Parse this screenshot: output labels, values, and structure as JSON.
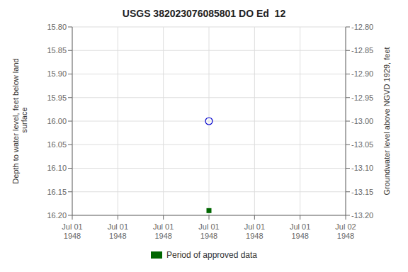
{
  "chart_data": {
    "type": "scatter",
    "title": "USGS 382023076085801 DO Ed  12",
    "y_label": "Depth to water level, feet below land\n surface",
    "y2_label": "Groundwater level above NGVD 1929, feet",
    "categories": [
      "Jul 01\n1948",
      "Jul 01\n1948",
      "Jul 01\n1948",
      "Jul 01\n1948",
      "Jul 01\n1948",
      "Jul 01\n1948",
      "Jul 02\n1948"
    ],
    "series": [
      {
        "color": "#0000cc",
        "marker": "open_circle",
        "values": [
          null,
          null,
          null,
          16.0,
          null,
          null,
          null
        ]
      },
      {
        "name": "Period of approved data",
        "color": "#006600",
        "marker": "square",
        "values": [
          null,
          null,
          null,
          16.19,
          null,
          null,
          null
        ]
      }
    ],
    "ylim": [
      16.2,
      15.8
    ],
    "yticks": [
      {
        "value": 15.8,
        "label": "15.80"
      },
      {
        "value": 15.85,
        "label": "15.85"
      },
      {
        "value": 15.9,
        "label": "15.90"
      },
      {
        "value": 15.95,
        "label": "15.95"
      },
      {
        "value": 16.0,
        "label": "16.00"
      },
      {
        "value": 16.05,
        "label": "16.05"
      },
      {
        "value": 16.1,
        "label": "16.10"
      },
      {
        "value": 16.15,
        "label": "16.15"
      },
      {
        "value": 16.2,
        "label": "16.20"
      }
    ],
    "y2lim": [
      -13.2,
      -12.8
    ],
    "y2ticks": [
      {
        "value": -12.8,
        "label": "-12.80"
      },
      {
        "value": -12.85,
        "label": "-12.85"
      },
      {
        "value": -12.9,
        "label": "-12.90"
      },
      {
        "value": -12.95,
        "label": "-12.95"
      },
      {
        "value": -13.0,
        "label": "-13.00"
      },
      {
        "value": -13.05,
        "label": "-13.05"
      },
      {
        "value": -13.1,
        "label": "-13.10"
      },
      {
        "value": -13.15,
        "label": "-13.15"
      },
      {
        "value": -13.2,
        "label": "-13.20"
      }
    ],
    "grid": true,
    "legend": "bottom"
  }
}
